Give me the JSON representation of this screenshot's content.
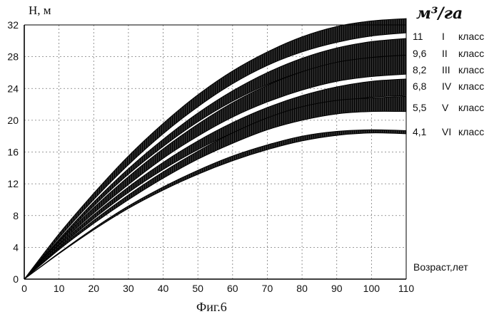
{
  "chart_data": {
    "type": "area",
    "title": "",
    "caption": "Фиг.6",
    "ylabel": "Н, м",
    "xlabel": "Возраст,лет",
    "unit_label": "м³/га",
    "xlim": [
      0,
      110
    ],
    "ylim": [
      0,
      32
    ],
    "x_ticks": [
      0,
      10,
      20,
      30,
      40,
      50,
      60,
      70,
      80,
      90,
      100,
      110
    ],
    "y_ticks": [
      0,
      4,
      8,
      12,
      16,
      20,
      24,
      28,
      32
    ],
    "grid": true,
    "x": [
      0,
      10,
      20,
      30,
      40,
      50,
      60,
      70,
      80,
      90,
      100,
      110
    ],
    "series": [
      {
        "name": "I класс",
        "value_label": "11",
        "class_label": "I",
        "word": "класс",
        "lower": [
          0,
          5.2,
          10.0,
          14.4,
          18.3,
          21.7,
          24.6,
          26.9,
          28.6,
          29.8,
          30.6,
          31.0
        ],
        "upper": [
          0,
          5.7,
          10.8,
          15.5,
          19.6,
          23.2,
          26.2,
          28.6,
          30.5,
          31.8,
          32.5,
          32.8
        ]
      },
      {
        "name": "II класс",
        "value_label": "9,6",
        "class_label": "II",
        "word": "класс",
        "lower": [
          0,
          4.8,
          9.2,
          13.2,
          16.7,
          19.8,
          22.4,
          24.5,
          26.1,
          27.2,
          27.9,
          28.2
        ],
        "upper": [
          0,
          5.0,
          9.7,
          13.9,
          17.6,
          20.9,
          23.7,
          26.0,
          27.8,
          29.1,
          29.9,
          30.3
        ]
      },
      {
        "name": "III класс",
        "value_label": "8,2",
        "class_label": "III",
        "word": "класс",
        "lower": [
          0,
          4.4,
          8.3,
          11.9,
          15.2,
          18.0,
          20.4,
          22.3,
          23.8,
          24.9,
          25.5,
          25.8
        ],
        "upper": [
          0,
          4.7,
          9.0,
          12.9,
          16.4,
          19.5,
          22.2,
          24.4,
          26.1,
          27.3,
          27.9,
          28.2
        ]
      },
      {
        "name": "IV класс",
        "value_label": "6,8",
        "class_label": "IV",
        "word": "класс",
        "lower": [
          0,
          4.0,
          7.6,
          10.9,
          13.8,
          16.3,
          18.4,
          20.1,
          21.4,
          22.3,
          22.9,
          23.1
        ],
        "upper": [
          0,
          4.3,
          8.1,
          11.6,
          14.7,
          17.4,
          19.7,
          21.6,
          23.1,
          24.2,
          24.9,
          25.2
        ]
      },
      {
        "name": "V класс",
        "value_label": "5,5",
        "class_label": "V",
        "word": "класс",
        "lower": [
          0,
          3.7,
          7.0,
          10.0,
          12.7,
          15.1,
          17.1,
          18.8,
          20.0,
          20.8,
          21.1,
          21.1
        ],
        "upper": [
          0,
          3.9,
          7.4,
          10.6,
          13.5,
          16.1,
          18.4,
          20.3,
          21.7,
          22.5,
          22.8,
          23.0
        ]
      },
      {
        "name": "VI класс",
        "value_label": "4,1",
        "class_label": "VI",
        "word": "класс",
        "lower": [
          0,
          3.2,
          6.2,
          8.9,
          11.2,
          13.2,
          14.9,
          16.3,
          17.4,
          18.1,
          18.4,
          18.3
        ],
        "upper": [
          0,
          3.3,
          6.4,
          9.2,
          11.6,
          13.7,
          15.5,
          16.9,
          18.0,
          18.6,
          18.8,
          18.7
        ]
      }
    ]
  }
}
